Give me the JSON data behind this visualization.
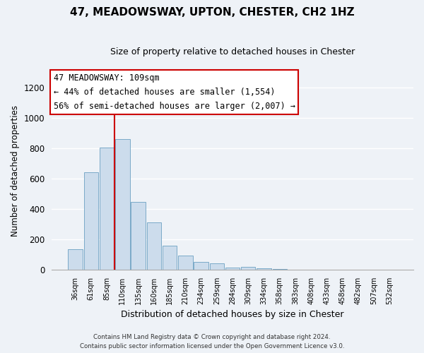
{
  "title": "47, MEADOWSWAY, UPTON, CHESTER, CH2 1HZ",
  "subtitle": "Size of property relative to detached houses in Chester",
  "xlabel": "Distribution of detached houses by size in Chester",
  "ylabel": "Number of detached properties",
  "bar_color": "#ccdcec",
  "bar_edge_color": "#7aaac8",
  "bin_labels": [
    "36sqm",
    "61sqm",
    "85sqm",
    "110sqm",
    "135sqm",
    "160sqm",
    "185sqm",
    "210sqm",
    "234sqm",
    "259sqm",
    "284sqm",
    "309sqm",
    "334sqm",
    "358sqm",
    "383sqm",
    "408sqm",
    "433sqm",
    "458sqm",
    "482sqm",
    "507sqm",
    "532sqm"
  ],
  "bar_heights": [
    135,
    640,
    805,
    860,
    445,
    310,
    160,
    95,
    52,
    40,
    15,
    20,
    8,
    3,
    2,
    0,
    0,
    0,
    0,
    0,
    0
  ],
  "vline_color": "#cc0000",
  "ylim_max": 1300,
  "yticks": [
    0,
    200,
    400,
    600,
    800,
    1000,
    1200
  ],
  "annotation_title": "47 MEADOWSWAY: 109sqm",
  "annotation_line1": "← 44% of detached houses are smaller (1,554)",
  "annotation_line2": "56% of semi-detached houses are larger (2,007) →",
  "annotation_box_color": "#ffffff",
  "annotation_box_edge_color": "#cc0000",
  "footnote1": "Contains HM Land Registry data © Crown copyright and database right 2024.",
  "footnote2": "Contains public sector information licensed under the Open Government Licence v3.0.",
  "background_color": "#eef2f7",
  "grid_color": "#ffffff",
  "title_fontsize": 11,
  "subtitle_fontsize": 9,
  "ylabel_fontsize": 8.5,
  "xlabel_fontsize": 9
}
